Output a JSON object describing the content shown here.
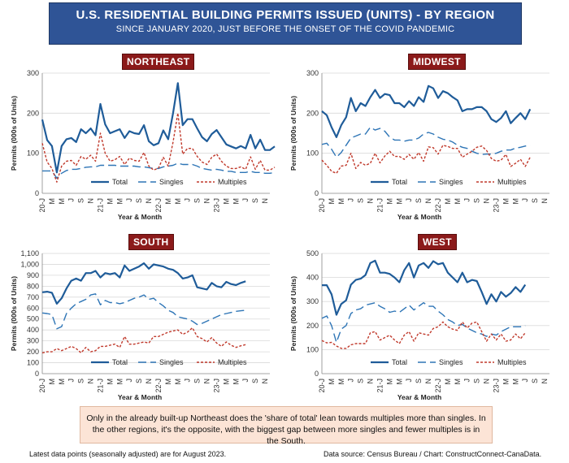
{
  "header": {
    "title": "U.S. RESIDENTIAL BUILDING PERMITS ISSUED (UNITS) - BY REGION",
    "subtitle": "SINCE JANUARY 2020, JUST BEFORE THE ONSET OF THE COVID PANDEMIC"
  },
  "colors": {
    "total": "#1f5c99",
    "singles": "#2e75b6",
    "multiples": "#c0392b",
    "header_bg": "#2f5496",
    "region_label_bg": "#8b1a1a",
    "note_bg": "#fce4d6"
  },
  "note": "Only in the already built-up Northeast does the 'share of total' lean towards multiples more than singles. In the other regions, it's the opposite, with the biggest gap between more singles and fewer multiples is in the South.",
  "footer": {
    "left": "Latest data points (seasonally adjusted) are for August 2023.",
    "right": "Data source: Census Bureau / Chart: ConstructConnect-CanaData."
  },
  "chart_data": [
    {
      "type": "line",
      "region": "NORTHEAST",
      "xlabel": "Year & Month",
      "ylabel": "Permits (000s of Units)",
      "ylim": [
        0,
        300
      ],
      "yticks": [
        "0",
        "100",
        "200",
        "300"
      ],
      "x_tick_labels": [
        "20-J",
        "M",
        "M",
        "J",
        "S",
        "N",
        "21-J",
        "M",
        "M",
        "J",
        "S",
        "N",
        "22-J",
        "M",
        "M",
        "J",
        "S",
        "N",
        "23-J",
        "M",
        "M",
        "J",
        "S",
        "N"
      ],
      "grid": true,
      "legend": [
        "Total",
        "Singles",
        "Multiples"
      ],
      "series": [
        {
          "name": "Total",
          "values": [
            184,
            133,
            118,
            52,
            118,
            135,
            138,
            128,
            160,
            150,
            162,
            145,
            223,
            172,
            150,
            155,
            160,
            138,
            155,
            150,
            148,
            170,
            130,
            120,
            125,
            157,
            135,
            200,
            275,
            170,
            185,
            185,
            162,
            140,
            130,
            148,
            158,
            140,
            122,
            117,
            112,
            118,
            112,
            146,
            112,
            134,
            108,
            108,
            117
          ]
        },
        {
          "name": "Singles",
          "values": [
            56,
            56,
            56,
            38,
            50,
            57,
            60,
            60,
            62,
            65,
            66,
            66,
            70,
            70,
            70,
            70,
            68,
            68,
            68,
            68,
            66,
            66,
            64,
            62,
            62,
            66,
            68,
            70,
            75,
            72,
            72,
            72,
            68,
            62,
            60,
            58,
            60,
            58,
            55,
            55,
            52,
            52,
            52,
            55,
            52,
            52,
            50,
            50,
            52
          ]
        },
        {
          "name": "Multiples",
          "values": [
            125,
            78,
            62,
            28,
            68,
            80,
            82,
            70,
            92,
            85,
            95,
            80,
            150,
            100,
            80,
            84,
            92,
            72,
            88,
            82,
            80,
            102,
            68,
            58,
            63,
            90,
            68,
            128,
            200,
            98,
            112,
            112,
            92,
            78,
            72,
            90,
            98,
            80,
            68,
            62,
            62,
            66,
            60,
            91,
            60,
            82,
            58,
            58,
            65
          ]
        }
      ]
    },
    {
      "type": "line",
      "region": "MIDWEST",
      "xlabel": "Year & Month",
      "ylabel": "Permits (000s of Units)",
      "ylim": [
        0,
        300
      ],
      "yticks": [
        "0",
        "100",
        "200",
        "300"
      ],
      "x_tick_labels": [
        "20-J",
        "M",
        "M",
        "J",
        "S",
        "N",
        "21-J",
        "M",
        "M",
        "J",
        "S",
        "N",
        "22-J",
        "M",
        "M",
        "J",
        "S",
        "N",
        "23-J",
        "M",
        "M",
        "J",
        "S",
        "N"
      ],
      "grid": true,
      "legend": [
        "Total",
        "Singles",
        "Multiples"
      ],
      "series": [
        {
          "name": "Total",
          "values": [
            205,
            195,
            165,
            140,
            170,
            190,
            238,
            205,
            225,
            218,
            240,
            258,
            238,
            248,
            245,
            225,
            225,
            215,
            230,
            218,
            240,
            228,
            268,
            262,
            238,
            255,
            250,
            240,
            232,
            205,
            210,
            210,
            215,
            215,
            205,
            185,
            178,
            188,
            205,
            175,
            188,
            200,
            185,
            210
          ]
        },
        {
          "name": "Singles",
          "values": [
            122,
            125,
            110,
            90,
            102,
            120,
            138,
            143,
            148,
            148,
            165,
            158,
            162,
            155,
            140,
            133,
            133,
            130,
            133,
            133,
            138,
            148,
            152,
            148,
            140,
            135,
            133,
            128,
            120,
            115,
            112,
            105,
            100,
            97,
            98,
            98,
            100,
            105,
            108,
            108,
            113,
            115,
            118,
            120
          ]
        },
        {
          "name": "Multiples",
          "values": [
            83,
            70,
            55,
            50,
            68,
            70,
            100,
            62,
            77,
            70,
            75,
            100,
            76,
            93,
            105,
            92,
            92,
            85,
            97,
            85,
            102,
            80,
            116,
            114,
            98,
            120,
            117,
            112,
            112,
            90,
            98,
            105,
            115,
            118,
            107,
            87,
            80,
            83,
            97,
            67,
            75,
            85,
            67,
            90
          ]
        }
      ]
    },
    {
      "type": "line",
      "region": "SOUTH",
      "xlabel": "Year & Month",
      "ylabel": "Permits (000s of Units)",
      "ylim": [
        0,
        1100
      ],
      "yticks": [
        "0",
        "100",
        "200",
        "300",
        "400",
        "500",
        "600",
        "700",
        "800",
        "900",
        "1,000",
        "1,100"
      ],
      "x_tick_labels": [
        "20-J",
        "M",
        "M",
        "J",
        "S",
        "N",
        "21-J",
        "M",
        "M",
        "J",
        "S",
        "N",
        "22-J",
        "M",
        "M",
        "J",
        "S",
        "N",
        "23-J",
        "M",
        "M",
        "J",
        "S",
        "N"
      ],
      "grid": true,
      "legend": [
        "Total",
        "Singles",
        "Multiples"
      ],
      "series": [
        {
          "name": "Total",
          "values": [
            745,
            750,
            740,
            640,
            690,
            780,
            850,
            870,
            850,
            920,
            920,
            940,
            880,
            920,
            910,
            920,
            880,
            990,
            940,
            960,
            980,
            1010,
            960,
            1000,
            990,
            980,
            960,
            950,
            920,
            870,
            880,
            900,
            790,
            780,
            770,
            830,
            800,
            790,
            840,
            820,
            810,
            830,
            845
          ]
        },
        {
          "name": "Singles",
          "values": [
            555,
            550,
            540,
            410,
            430,
            550,
            600,
            640,
            660,
            680,
            720,
            730,
            630,
            670,
            650,
            650,
            640,
            650,
            670,
            690,
            700,
            720,
            680,
            690,
            650,
            620,
            580,
            560,
            520,
            510,
            500,
            480,
            450,
            460,
            480,
            500,
            520,
            540,
            550,
            560,
            570,
            575,
            580
          ]
        },
        {
          "name": "Multiples",
          "values": [
            190,
            200,
            200,
            230,
            210,
            230,
            250,
            230,
            190,
            240,
            200,
            210,
            250,
            250,
            260,
            270,
            240,
            340,
            270,
            270,
            280,
            290,
            280,
            340,
            340,
            360,
            380,
            390,
            400,
            360,
            380,
            420,
            340,
            320,
            290,
            330,
            280,
            250,
            290,
            260,
            240,
            255,
            265
          ]
        }
      ]
    },
    {
      "type": "line",
      "region": "WEST",
      "xlabel": "Year & Month",
      "ylabel": "Permits (000s of Units)",
      "ylim": [
        0,
        500
      ],
      "yticks": [
        "0",
        "100",
        "200",
        "300",
        "400",
        "500"
      ],
      "x_tick_labels": [
        "20-J",
        "M",
        "M",
        "J",
        "S",
        "N",
        "21-J",
        "M",
        "M",
        "J",
        "S",
        "N",
        "22-J",
        "M",
        "M",
        "J",
        "S",
        "N",
        "23-J",
        "M",
        "M",
        "J",
        "S",
        "N"
      ],
      "grid": true,
      "legend": [
        "Total",
        "Singles",
        "Multiples"
      ],
      "series": [
        {
          "name": "Total",
          "values": [
            368,
            368,
            330,
            245,
            290,
            305,
            370,
            390,
            395,
            410,
            460,
            470,
            420,
            420,
            415,
            400,
            380,
            430,
            460,
            400,
            450,
            460,
            440,
            468,
            455,
            460,
            420,
            400,
            380,
            420,
            380,
            390,
            385,
            340,
            290,
            330,
            300,
            340,
            320,
            335,
            360,
            340,
            370
          ]
        },
        {
          "name": "Singles",
          "values": [
            230,
            240,
            200,
            130,
            185,
            200,
            250,
            265,
            270,
            285,
            290,
            295,
            280,
            270,
            255,
            260,
            255,
            270,
            285,
            265,
            280,
            295,
            280,
            280,
            260,
            245,
            225,
            215,
            200,
            205,
            190,
            180,
            170,
            165,
            155,
            165,
            160,
            175,
            185,
            195,
            195,
            195,
            200
          ]
        },
        {
          "name": "Multiples",
          "values": [
            138,
            128,
            130,
            115,
            105,
            105,
            120,
            125,
            125,
            125,
            170,
            175,
            140,
            150,
            160,
            140,
            125,
            160,
            175,
            135,
            170,
            165,
            160,
            188,
            195,
            215,
            195,
            185,
            180,
            215,
            190,
            210,
            215,
            175,
            135,
            165,
            140,
            165,
            135,
            140,
            165,
            145,
            170
          ]
        }
      ]
    }
  ]
}
